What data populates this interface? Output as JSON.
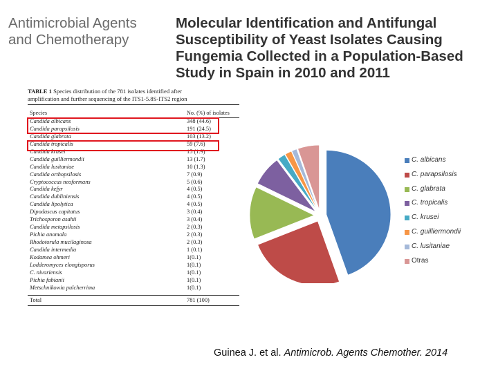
{
  "journal": {
    "line1": "Antimicrobial Agents",
    "line2": "and Chemotherapy"
  },
  "title": {
    "line1": "Molecular Identification and Antifungal",
    "line2": "Susceptibility of Yeast Isolates Causing",
    "line3": "Fungemia Collected in a Population-Based",
    "line4": "Study in Spain in 2010 and 2011"
  },
  "table": {
    "caption_label": "TABLE 1",
    "caption_line1_rest": "Species distribution of the 781 isolates identified after",
    "caption_line2": "amplification and further sequencing of the ITS1-5.8S-ITS2 region",
    "col_species": "Species",
    "col_count": "No. (%) of isolates",
    "rows": [
      {
        "species": "Candida albicans",
        "count": "348 (44.6)"
      },
      {
        "species": "Candida parapsilosis",
        "count": "191 (24.5)"
      },
      {
        "species": "Candida glabrata",
        "count": "103 (13.2)"
      },
      {
        "species": "Candida tropicalis",
        "count": "59 (7.6)"
      },
      {
        "species": "Candida krusei",
        "count": "15 (1.9)"
      },
      {
        "species": "Candida guilliermondii",
        "count": "13 (1.7)"
      },
      {
        "species": "Candida lusitaniae",
        "count": "10 (1.3)"
      },
      {
        "species": "Candida orthopsilosis",
        "count": "7 (0.9)"
      },
      {
        "species": "Cryptococcus neoformans",
        "count": "5 (0.6)"
      },
      {
        "species": "Candida kefyr",
        "count": "4 (0.5)"
      },
      {
        "species": "Candida dubliniensis",
        "count": "4 (0.5)"
      },
      {
        "species": "Candida lipolytica",
        "count": "4 (0.5)"
      },
      {
        "species": "Dipodascus capitatus",
        "count": "3 (0.4)"
      },
      {
        "species": "Trichosporon asahii",
        "count": "3 (0.4)"
      },
      {
        "species": "Candida metapsilosis",
        "count": "2 (0.3)"
      },
      {
        "species": "Pichia anomala",
        "count": "2 (0.3)"
      },
      {
        "species": "Rhodotorula mucilaginosa",
        "count": "2 (0.3)"
      },
      {
        "species": "Candida intermedia",
        "count": "1 (0.1)"
      },
      {
        "species": "Kodamea ohmeri",
        "count": "1(0.1)"
      },
      {
        "species": "Lodderomyces elongisporus",
        "count": "1(0.1)"
      },
      {
        "species": "C. nivariensis",
        "count": "1(0.1)"
      },
      {
        "species": "Pichia fabianii",
        "count": "1(0.1)"
      },
      {
        "species": "Metschnikowia pulcherrima",
        "count": "1(0.1)"
      }
    ],
    "total_label": "Total",
    "total_count": "781 (100)",
    "highlight_color": "#e0161e"
  },
  "chart_data": {
    "type": "pie",
    "exploded": true,
    "categories": [
      "C. albicans",
      "C. parapsilosis",
      "C. glabrata",
      "C. tropicalis",
      "C. krusei",
      "C. guilliermondii",
      "C. lusitaniae",
      "Otras"
    ],
    "values": [
      348,
      191,
      103,
      59,
      15,
      13,
      10,
      42
    ],
    "colors": [
      "#4a7ebb",
      "#be4b48",
      "#98b954",
      "#7d60a0",
      "#46aac5",
      "#f79646",
      "#a5b9d9",
      "#d99695"
    ],
    "legend_position": "right"
  },
  "citation": {
    "authors": "Guinea J. et al.",
    "journal": "Antimicrob. Agents Chemother. 2014"
  }
}
